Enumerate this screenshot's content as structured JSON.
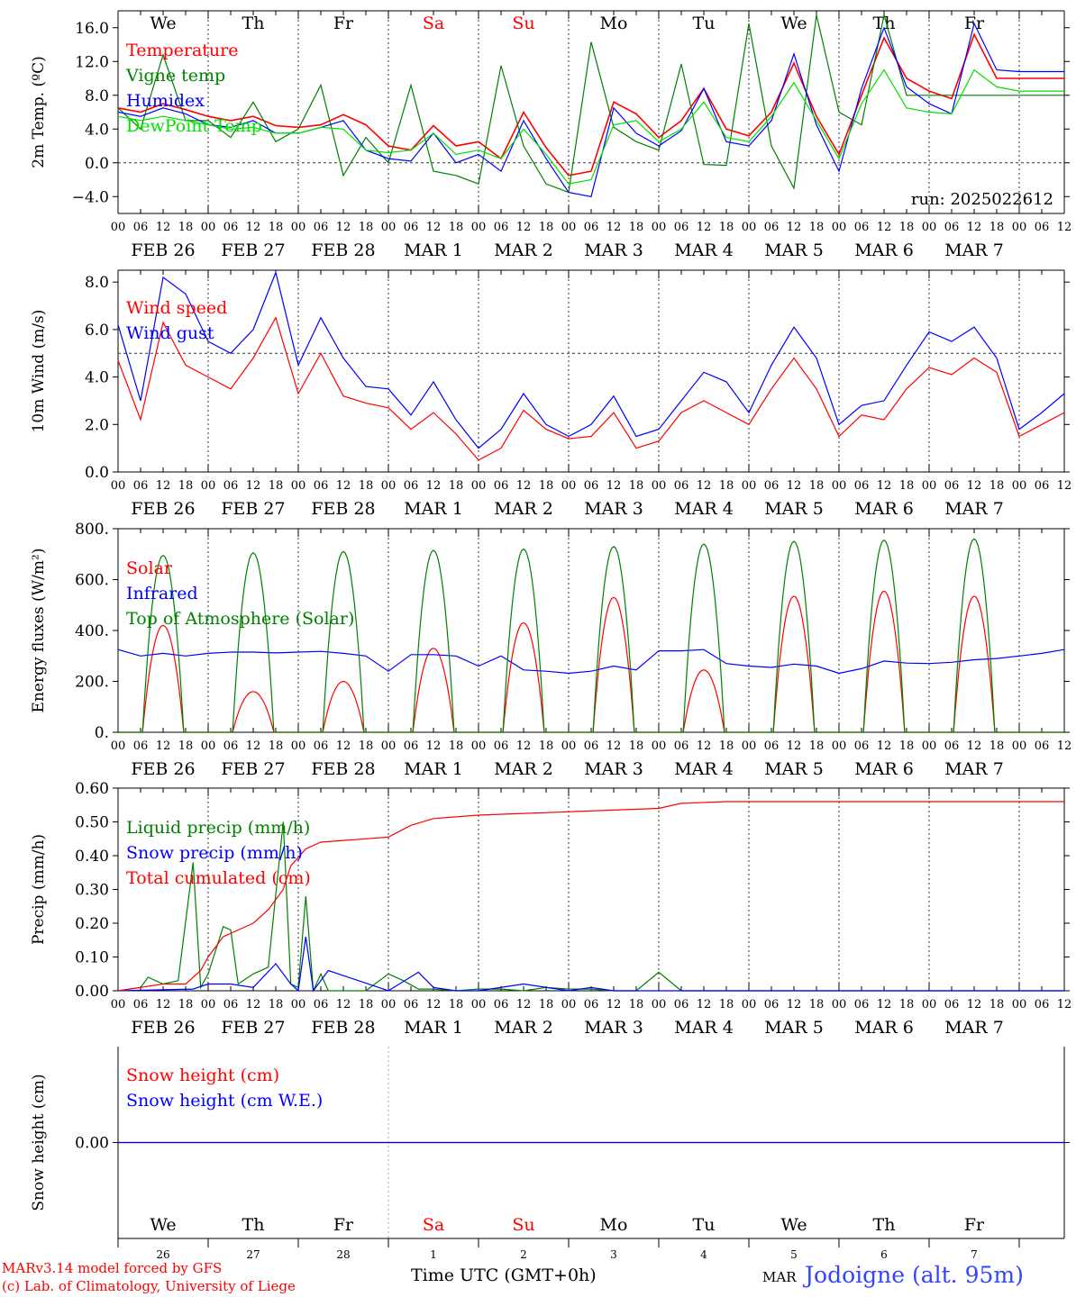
{
  "header": {
    "weekdays": [
      {
        "label": "We",
        "color": "#000000"
      },
      {
        "label": "Th",
        "color": "#000000"
      },
      {
        "label": "Fr",
        "color": "#000000"
      },
      {
        "label": "Sa",
        "color": "#ff0000"
      },
      {
        "label": "Su",
        "color": "#ff0000"
      },
      {
        "label": "Mo",
        "color": "#000000"
      },
      {
        "label": "Tu",
        "color": "#000000"
      },
      {
        "label": "We",
        "color": "#000000"
      },
      {
        "label": "Th",
        "color": "#000000"
      },
      {
        "label": "Fr",
        "color": "#000000"
      }
    ],
    "hour_ticks": [
      "00",
      "06",
      "12",
      "18"
    ],
    "date_labels": [
      "FEB 26",
      "FEB 27",
      "FEB 28",
      "MAR  1",
      "MAR  2",
      "MAR  3",
      "MAR  4",
      "MAR  5",
      "MAR  6",
      "MAR  7"
    ],
    "day_numbers": [
      "26",
      "27",
      "28",
      "1",
      "2",
      "3",
      "4",
      "5",
      "6",
      "7"
    ],
    "run_label": "run: 2025022612"
  },
  "footer": {
    "credit_line1": "MARv3.14 model forced by GFS",
    "credit_line2": "(c) Lab. of Climatology, University of Liege",
    "time_axis": "Time UTC (GMT+0h)",
    "month": "MAR",
    "location": "Jodoigne (alt. 95m)"
  },
  "colors": {
    "red": "#ff0000",
    "green": "#008000",
    "blue": "#0000ff",
    "light_green": "#00e000",
    "grid": "#555555"
  },
  "chart_data": [
    {
      "type": "line",
      "ylabel": "2m Temp. (ºC)",
      "ylim": [
        -6,
        18
      ],
      "yticks": [
        16,
        12,
        8,
        4,
        0,
        -4
      ],
      "ytick_labels": [
        "16.0",
        "12.0",
        "8.0",
        "4.0",
        "0.0",
        "−4.0"
      ],
      "reference_line": 0,
      "legend_placement": "top-left",
      "series": [
        {
          "name": "Temperature",
          "color": "#ff0000",
          "x": [
            0,
            6,
            12,
            18,
            24,
            30,
            36,
            42,
            48,
            54,
            60,
            66,
            72,
            78,
            84,
            90,
            96,
            102,
            108,
            114,
            120,
            126,
            132,
            138,
            144,
            150,
            156,
            162,
            168,
            174,
            180,
            186,
            192,
            198,
            204,
            210,
            216,
            222,
            228,
            234,
            240,
            246,
            252
          ],
          "y": [
            6.5,
            6.0,
            7.0,
            6.3,
            5.5,
            5.0,
            5.5,
            4.4,
            4.2,
            4.5,
            5.7,
            4.5,
            2.0,
            1.5,
            4.4,
            2.0,
            2.5,
            0.5,
            6.0,
            1.8,
            -1.5,
            -1.0,
            7.2,
            5.8,
            3.0,
            5.0,
            8.8,
            4.0,
            3.2,
            6.0,
            11.8,
            5.5,
            1.0,
            8.0,
            14.8,
            10.0,
            8.5,
            7.6,
            15.2,
            10.0,
            10.0,
            10.0,
            10.0
          ]
        },
        {
          "name": "Vigne temp",
          "color": "#008000",
          "x": [
            0,
            6,
            12,
            18,
            24,
            30,
            36,
            42,
            48,
            54,
            60,
            66,
            72,
            78,
            84,
            90,
            96,
            102,
            108,
            114,
            120,
            126,
            132,
            138,
            144,
            150,
            156,
            162,
            168,
            174,
            180,
            186,
            192,
            198,
            204,
            210,
            216,
            222,
            228,
            234,
            240,
            246,
            252
          ],
          "y": [
            6.5,
            4.0,
            12.8,
            5.0,
            5.0,
            3.0,
            7.2,
            2.5,
            4.0,
            9.2,
            -1.5,
            3.0,
            0.0,
            9.2,
            -1.0,
            -1.5,
            -2.5,
            11.5,
            2.0,
            -2.5,
            -3.5,
            14.3,
            4.2,
            2.5,
            1.5,
            11.7,
            -0.2,
            -0.3,
            16.5,
            2.0,
            -3.0,
            17.5,
            6.0,
            4.5,
            17.5,
            8.0,
            8.0,
            8.0,
            8.0,
            8.0,
            8.0,
            8.0,
            8.0
          ]
        },
        {
          "name": "Humidex",
          "color": "#0000ff",
          "x": [
            0,
            6,
            12,
            18,
            24,
            30,
            36,
            42,
            48,
            54,
            60,
            66,
            72,
            78,
            84,
            90,
            96,
            102,
            108,
            114,
            120,
            126,
            132,
            138,
            144,
            150,
            156,
            162,
            168,
            174,
            180,
            186,
            192,
            198,
            204,
            210,
            216,
            222,
            228,
            234,
            240,
            246,
            252
          ],
          "y": [
            6.0,
            5.5,
            6.5,
            5.8,
            4.5,
            4.2,
            5.0,
            3.5,
            3.5,
            4.2,
            5.0,
            1.5,
            0.5,
            0.2,
            3.5,
            0.0,
            1.0,
            -1.0,
            5.0,
            0.5,
            -3.5,
            -4.0,
            6.5,
            3.5,
            2.0,
            3.8,
            8.8,
            2.5,
            2.0,
            5.0,
            12.9,
            4.5,
            -1.0,
            8.8,
            16.0,
            9.0,
            7.0,
            5.8,
            16.5,
            11.0,
            10.8,
            10.8,
            10.8
          ]
        },
        {
          "name": "DewPoint Temp",
          "color": "#00e000",
          "x": [
            0,
            6,
            12,
            18,
            24,
            30,
            36,
            42,
            48,
            54,
            60,
            66,
            72,
            78,
            84,
            90,
            96,
            102,
            108,
            114,
            120,
            126,
            132,
            138,
            144,
            150,
            156,
            162,
            168,
            174,
            180,
            186,
            192,
            198,
            204,
            210,
            216,
            222,
            228,
            234,
            240,
            246,
            252
          ],
          "y": [
            5.5,
            5.0,
            5.5,
            5.0,
            4.5,
            4.0,
            4.2,
            3.5,
            3.5,
            4.2,
            4.0,
            1.5,
            1.2,
            1.5,
            3.5,
            1.0,
            1.5,
            0.5,
            4.0,
            1.0,
            -2.5,
            -2.0,
            4.5,
            5.0,
            2.5,
            4.0,
            7.2,
            3.0,
            2.5,
            5.5,
            9.5,
            5.0,
            0.5,
            7.0,
            11.0,
            6.5,
            6.0,
            5.8,
            11.0,
            9.0,
            8.5,
            8.5,
            8.5
          ]
        }
      ]
    },
    {
      "type": "line",
      "ylabel": "10m Wind (m/s)",
      "ylim": [
        0,
        8.5
      ],
      "yticks": [
        8,
        6,
        4,
        2,
        0
      ],
      "ytick_labels": [
        "8.0",
        "6.0",
        "4.0",
        "2.0",
        "0.0"
      ],
      "reference_line": 5,
      "legend_placement": "top-left",
      "series": [
        {
          "name": "Wind speed",
          "color": "#ff0000",
          "x": [
            0,
            6,
            12,
            18,
            24,
            30,
            36,
            42,
            48,
            54,
            60,
            66,
            72,
            78,
            84,
            90,
            96,
            102,
            108,
            114,
            120,
            126,
            132,
            138,
            144,
            150,
            156,
            162,
            168,
            174,
            180,
            186,
            192,
            198,
            204,
            210,
            216,
            222,
            228,
            234,
            240,
            246,
            252
          ],
          "y": [
            4.7,
            2.2,
            6.3,
            4.5,
            4.0,
            3.5,
            4.8,
            6.5,
            3.3,
            5.0,
            3.2,
            2.9,
            2.7,
            1.8,
            2.5,
            1.6,
            0.5,
            1.0,
            2.6,
            1.8,
            1.4,
            1.5,
            2.5,
            1.0,
            1.3,
            2.5,
            3.0,
            2.5,
            2.0,
            3.5,
            4.8,
            3.5,
            1.5,
            2.4,
            2.2,
            3.5,
            4.4,
            4.1,
            4.8,
            4.2,
            1.5,
            2.0,
            2.5
          ]
        },
        {
          "name": "Wind gust",
          "color": "#0000ff",
          "x": [
            0,
            6,
            12,
            18,
            24,
            30,
            36,
            42,
            48,
            54,
            60,
            66,
            72,
            78,
            84,
            90,
            96,
            102,
            108,
            114,
            120,
            126,
            132,
            138,
            144,
            150,
            156,
            162,
            168,
            174,
            180,
            186,
            192,
            198,
            204,
            210,
            216,
            222,
            228,
            234,
            240,
            246,
            252
          ],
          "y": [
            6.2,
            3.0,
            8.2,
            7.5,
            5.5,
            5.0,
            6.0,
            8.4,
            4.5,
            6.5,
            4.8,
            3.6,
            3.5,
            2.4,
            3.8,
            2.2,
            1.0,
            1.8,
            3.3,
            2.0,
            1.5,
            2.0,
            3.2,
            1.5,
            1.8,
            3.0,
            4.2,
            3.8,
            2.5,
            4.5,
            6.1,
            4.8,
            2.0,
            2.8,
            3.0,
            4.5,
            5.9,
            5.5,
            6.1,
            4.8,
            1.8,
            2.5,
            3.3
          ]
        }
      ]
    },
    {
      "type": "line",
      "ylabel": "Energy fluxes (W/m²)",
      "ylim": [
        0,
        800
      ],
      "yticks": [
        800,
        600,
        400,
        200,
        0
      ],
      "ytick_labels": [
        "800.",
        "600.",
        "400.",
        "200.",
        "0."
      ],
      "legend_placement": "top-left",
      "series": [
        {
          "name": "Solar",
          "color": "#ff0000",
          "peak_hour": [
            12,
            36,
            60,
            84,
            108,
            132,
            156,
            180,
            204,
            228
          ],
          "peak": [
            420,
            160,
            200,
            330,
            430,
            530,
            245,
            535,
            555,
            535
          ]
        },
        {
          "name": "Infrared",
          "color": "#0000ff",
          "x": [
            0,
            6,
            12,
            18,
            24,
            30,
            36,
            42,
            48,
            54,
            60,
            66,
            72,
            78,
            84,
            90,
            96,
            102,
            108,
            114,
            120,
            126,
            132,
            138,
            144,
            150,
            156,
            162,
            168,
            174,
            180,
            186,
            192,
            198,
            204,
            210,
            216,
            222,
            228,
            234,
            240,
            246,
            252
          ],
          "y": [
            325,
            300,
            310,
            300,
            310,
            315,
            315,
            312,
            315,
            318,
            310,
            300,
            240,
            305,
            305,
            300,
            260,
            300,
            245,
            240,
            232,
            240,
            260,
            245,
            320,
            320,
            325,
            270,
            260,
            255,
            268,
            260,
            232,
            250,
            280,
            272,
            270,
            275,
            285,
            290,
            300,
            310,
            325
          ]
        },
        {
          "name": "Top of Atmosphere (Solar)",
          "color": "#008000",
          "peak_hour": [
            12,
            36,
            60,
            84,
            108,
            132,
            156,
            180,
            204,
            228
          ],
          "peak": [
            695,
            705,
            710,
            715,
            720,
            730,
            740,
            750,
            755,
            760
          ]
        }
      ]
    },
    {
      "type": "line",
      "ylabel": "Precip (mm/h)",
      "ylim": [
        0,
        0.6
      ],
      "yticks": [
        0.6,
        0.5,
        0.4,
        0.3,
        0.2,
        0.1,
        0
      ],
      "ytick_labels": [
        "0.60",
        "0.50",
        "0.40",
        "0.30",
        "0.20",
        "0.10",
        "0.00"
      ],
      "legend_placement": "top-left",
      "series": [
        {
          "name": "Liquid precip (mm/h)",
          "color": "#008000",
          "x": [
            0,
            6,
            8,
            12,
            16,
            20,
            22,
            24,
            28,
            30,
            32,
            36,
            40,
            44,
            46,
            48,
            50,
            52,
            54,
            56,
            60,
            66,
            72,
            76,
            80,
            84,
            90,
            96,
            102,
            108,
            114,
            120,
            126,
            132,
            138,
            144,
            150,
            156,
            162,
            168,
            252
          ],
          "y": [
            0,
            0.01,
            0.04,
            0.02,
            0.03,
            0.38,
            0.01,
            0.05,
            0.19,
            0.18,
            0.02,
            0.05,
            0.07,
            0.5,
            0.02,
            0.01,
            0.28,
            0.0,
            0.05,
            0.0,
            0.0,
            0.0,
            0.05,
            0.03,
            0.005,
            0.005,
            0.0,
            0.005,
            0.005,
            0.0,
            0.01,
            0.005,
            0.005,
            0.0,
            0.0,
            0.055,
            0.0,
            0.0,
            0.0,
            0.0,
            0.0
          ]
        },
        {
          "name": "Snow precip (mm/h)",
          "color": "#0000ff",
          "x": [
            0,
            20,
            24,
            30,
            36,
            42,
            46,
            48,
            50,
            52,
            56,
            72,
            80,
            84,
            90,
            96,
            108,
            120,
            126,
            132,
            138,
            144,
            252
          ],
          "y": [
            0,
            0.005,
            0.02,
            0.02,
            0.01,
            0.08,
            0.02,
            0.0,
            0.16,
            0.0,
            0.06,
            0.0,
            0.055,
            0.01,
            0.0,
            0.0,
            0.02,
            0.0,
            0.01,
            0.0,
            0.0,
            0.0,
            0.0
          ]
        },
        {
          "name": "Total cumulated (cm)",
          "color": "#ff0000",
          "x": [
            0,
            6,
            12,
            18,
            22,
            24,
            28,
            32,
            36,
            40,
            44,
            46,
            50,
            54,
            60,
            66,
            72,
            78,
            84,
            90,
            96,
            108,
            120,
            132,
            144,
            150,
            162,
            252
          ],
          "y": [
            0,
            0.01,
            0.02,
            0.02,
            0.06,
            0.1,
            0.16,
            0.18,
            0.2,
            0.24,
            0.3,
            0.37,
            0.42,
            0.44,
            0.445,
            0.45,
            0.455,
            0.49,
            0.51,
            0.515,
            0.52,
            0.525,
            0.53,
            0.535,
            0.54,
            0.555,
            0.56,
            0.56
          ]
        }
      ]
    },
    {
      "type": "line",
      "ylabel": "Snow height (cm)",
      "ylim": [
        -1,
        1
      ],
      "yticks": [
        0
      ],
      "ytick_labels": [
        "0.00"
      ],
      "legend_placement": "top-left",
      "series": [
        {
          "name": "Snow height (cm)",
          "color": "#ff0000",
          "x": [
            0,
            252
          ],
          "y": [
            0,
            0
          ]
        },
        {
          "name": "Snow height (cm W.E.)",
          "color": "#0000ff",
          "x": [
            0,
            252
          ],
          "y": [
            0,
            0
          ]
        }
      ]
    }
  ]
}
